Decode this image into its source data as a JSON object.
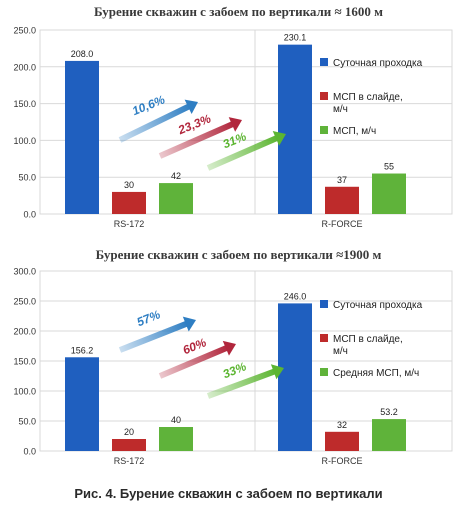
{
  "figure_caption": "Рис. 4. Бурение скважин с забоем по вертикали",
  "chart_data": [
    {
      "type": "bar",
      "title": "Бурение скважин с забоем по вертикали  ≈ 1600 м",
      "categories": [
        "RS-172",
        "R-FORCE"
      ],
      "series": [
        {
          "name": "Суточная проходка",
          "values": [
            208.0,
            230.1
          ],
          "labels": [
            "208.0",
            "230.1"
          ],
          "color": "#1f5fbf"
        },
        {
          "name": "МСП в слайде, м/ч",
          "values": [
            30,
            37
          ],
          "labels": [
            "30",
            "37"
          ],
          "color": "#be2b2b"
        },
        {
          "name": "МСП, м/ч",
          "values": [
            42,
            55
          ],
          "labels": [
            "42",
            "55"
          ],
          "color": "#5fb33a"
        }
      ],
      "ylim": [
        0,
        250
      ],
      "yticks": [
        "0.0",
        "50.0",
        "100.0",
        "150.0",
        "200.0",
        "250.0"
      ],
      "grid": true,
      "legend_position": "right",
      "annotations": [
        {
          "text": "10,6%",
          "color": "#2e7ec3"
        },
        {
          "text": "23,3%",
          "color": "#b1263c"
        },
        {
          "text": "31%",
          "color": "#5cb531"
        }
      ]
    },
    {
      "type": "bar",
      "title": "Бурение скважин с забоем по вертикали  ≈1900 м",
      "categories": [
        "RS-172",
        "R-FORCE"
      ],
      "series": [
        {
          "name": "Суточная проходка",
          "values": [
            156.2,
            246.0
          ],
          "labels": [
            "156.2",
            "246.0"
          ],
          "color": "#1f5fbf"
        },
        {
          "name": "МСП в слайде, м/ч",
          "values": [
            20,
            32
          ],
          "labels": [
            "20",
            "32"
          ],
          "color": "#be2b2b"
        },
        {
          "name": "Средняя МСП, м/ч",
          "values": [
            40,
            53.2
          ],
          "labels": [
            "40",
            "53.2"
          ],
          "color": "#5fb33a"
        }
      ],
      "ylim": [
        0,
        300
      ],
      "yticks": [
        "0.0",
        "50.0",
        "100.0",
        "150.0",
        "200.0",
        "250.0",
        "300.0"
      ],
      "grid": true,
      "legend_position": "right",
      "annotations": [
        {
          "text": "57%",
          "color": "#2e7ec3"
        },
        {
          "text": "60%",
          "color": "#b1263c"
        },
        {
          "text": "33%",
          "color": "#5cb531"
        }
      ]
    }
  ]
}
